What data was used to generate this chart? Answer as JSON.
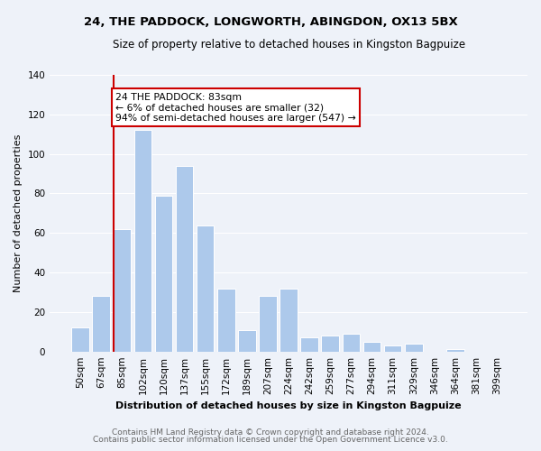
{
  "title": "24, THE PADDOCK, LONGWORTH, ABINGDON, OX13 5BX",
  "subtitle": "Size of property relative to detached houses in Kingston Bagpuize",
  "xlabel": "Distribution of detached houses by size in Kingston Bagpuize",
  "ylabel": "Number of detached properties",
  "footer1": "Contains HM Land Registry data © Crown copyright and database right 2024.",
  "footer2": "Contains public sector information licensed under the Open Government Licence v3.0.",
  "bar_labels": [
    "50sqm",
    "67sqm",
    "85sqm",
    "102sqm",
    "120sqm",
    "137sqm",
    "155sqm",
    "172sqm",
    "189sqm",
    "207sqm",
    "224sqm",
    "242sqm",
    "259sqm",
    "277sqm",
    "294sqm",
    "311sqm",
    "329sqm",
    "346sqm",
    "364sqm",
    "381sqm",
    "399sqm"
  ],
  "bar_values": [
    12,
    28,
    62,
    112,
    79,
    94,
    64,
    32,
    11,
    28,
    32,
    7,
    8,
    9,
    5,
    3,
    4,
    0,
    1,
    0,
    0
  ],
  "bar_color": "#adc9eb",
  "vline_color": "#cc0000",
  "annotation_line1": "24 THE PADDOCK: 83sqm",
  "annotation_line2": "← 6% of detached houses are smaller (32)",
  "annotation_line3": "94% of semi-detached houses are larger (547) →",
  "annotation_box_color": "#ffffff",
  "annotation_box_edge_color": "#cc0000",
  "ylim": [
    0,
    140
  ],
  "yticks": [
    0,
    20,
    40,
    60,
    80,
    100,
    120,
    140
  ],
  "background_color": "#eef2f9",
  "plot_bg_color": "#eef2f9",
  "grid_color": "#ffffff",
  "title_fontsize": 9.5,
  "subtitle_fontsize": 8.5,
  "axis_label_fontsize": 8,
  "tick_fontsize": 7.5,
  "footer_fontsize": 6.5
}
